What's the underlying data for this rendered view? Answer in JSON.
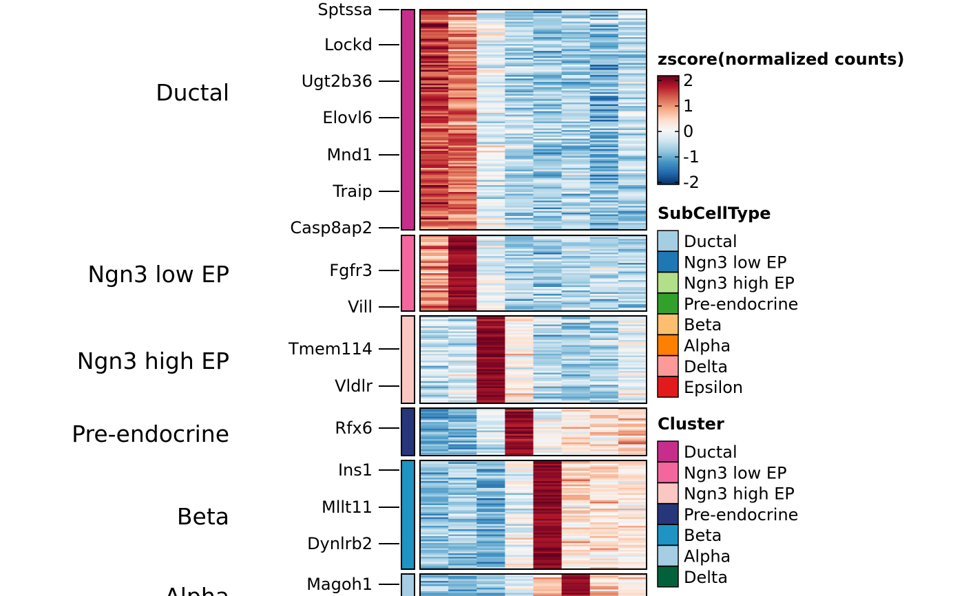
{
  "chart_data": {
    "type": "heatmap",
    "clusters": [
      {
        "name": "Ductal",
        "color": "#C72E8C",
        "genes": [
          "Sptssa",
          "Lockd",
          "Ugt2b36",
          "Elovl6",
          "Mnd1",
          "Traip",
          "Casp8ap2"
        ],
        "column_means": [
          1.4,
          1.0,
          -0.2,
          -0.6,
          -0.7,
          -0.6,
          -0.9,
          -0.5
        ]
      },
      {
        "name": "Ngn3 low EP",
        "color": "#F4679E",
        "genes": [
          "Fgfr3",
          "Vill"
        ],
        "column_means": [
          0.9,
          1.8,
          -0.2,
          -0.6,
          -0.6,
          -0.6,
          -0.6,
          -0.6
        ]
      },
      {
        "name": "Ngn3 high EP",
        "color": "#FBC7C3",
        "genes": [
          "Tmem114",
          "Vldlr"
        ],
        "column_means": [
          -0.5,
          -0.3,
          1.8,
          0.1,
          -0.5,
          -0.6,
          -0.6,
          -0.2
        ]
      },
      {
        "name": "Pre-endocrine",
        "color": "#27367A",
        "genes": [
          "Rfx6"
        ],
        "column_means": [
          -1.1,
          -0.9,
          -0.3,
          1.8,
          -0.1,
          0.2,
          0.3,
          0.5
        ]
      },
      {
        "name": "Beta",
        "color": "#1F93C3",
        "genes": [
          "Ins1",
          "Mllt11",
          "Dynlrb2"
        ],
        "column_means": [
          -0.8,
          -0.7,
          -0.9,
          -0.1,
          1.8,
          0.4,
          0.3,
          0.2
        ]
      },
      {
        "name": "Alpha",
        "color": "#A5CDE3",
        "genes": [
          "Magoh1"
        ],
        "column_means": [
          -0.8,
          -0.8,
          -0.9,
          -0.2,
          0.5,
          1.8,
          0.4,
          0.3
        ]
      }
    ],
    "columns": 8,
    "color_scale": {
      "title": "zscore(normalized counts)",
      "ticks": [
        "2",
        "1",
        "0",
        "-1",
        "-2"
      ],
      "domain": [
        -2,
        2
      ],
      "colors": [
        "#053061",
        "#2166AC",
        "#4393C3",
        "#92C5DE",
        "#D1E5F0",
        "#F7F7F7",
        "#FDDBC7",
        "#F4A582",
        "#D6604D",
        "#B2182B",
        "#67001F"
      ]
    },
    "legends": [
      {
        "title": "SubCellType",
        "items": [
          {
            "label": "Ductal",
            "color": "#A6CEE3"
          },
          {
            "label": "Ngn3 low EP",
            "color": "#1F78B4"
          },
          {
            "label": "Ngn3 high EP",
            "color": "#B2DF8A"
          },
          {
            "label": "Pre-endocrine",
            "color": "#33A02C"
          },
          {
            "label": "Beta",
            "color": "#FDBF6F"
          },
          {
            "label": "Alpha",
            "color": "#FF7F00"
          },
          {
            "label": "Delta",
            "color": "#FB9A99"
          },
          {
            "label": "Epsilon",
            "color": "#E31A1C"
          }
        ]
      },
      {
        "title": "Cluster",
        "items": [
          {
            "label": "Ductal",
            "color": "#C72E8C"
          },
          {
            "label": "Ngn3 low EP",
            "color": "#F4679E"
          },
          {
            "label": "Ngn3 high EP",
            "color": "#FBC7C3"
          },
          {
            "label": "Pre-endocrine",
            "color": "#27367A"
          },
          {
            "label": "Beta",
            "color": "#1F93C3"
          },
          {
            "label": "Alpha",
            "color": "#A5CDE3"
          },
          {
            "label": "Delta",
            "color": "#00613A"
          }
        ]
      }
    ]
  }
}
